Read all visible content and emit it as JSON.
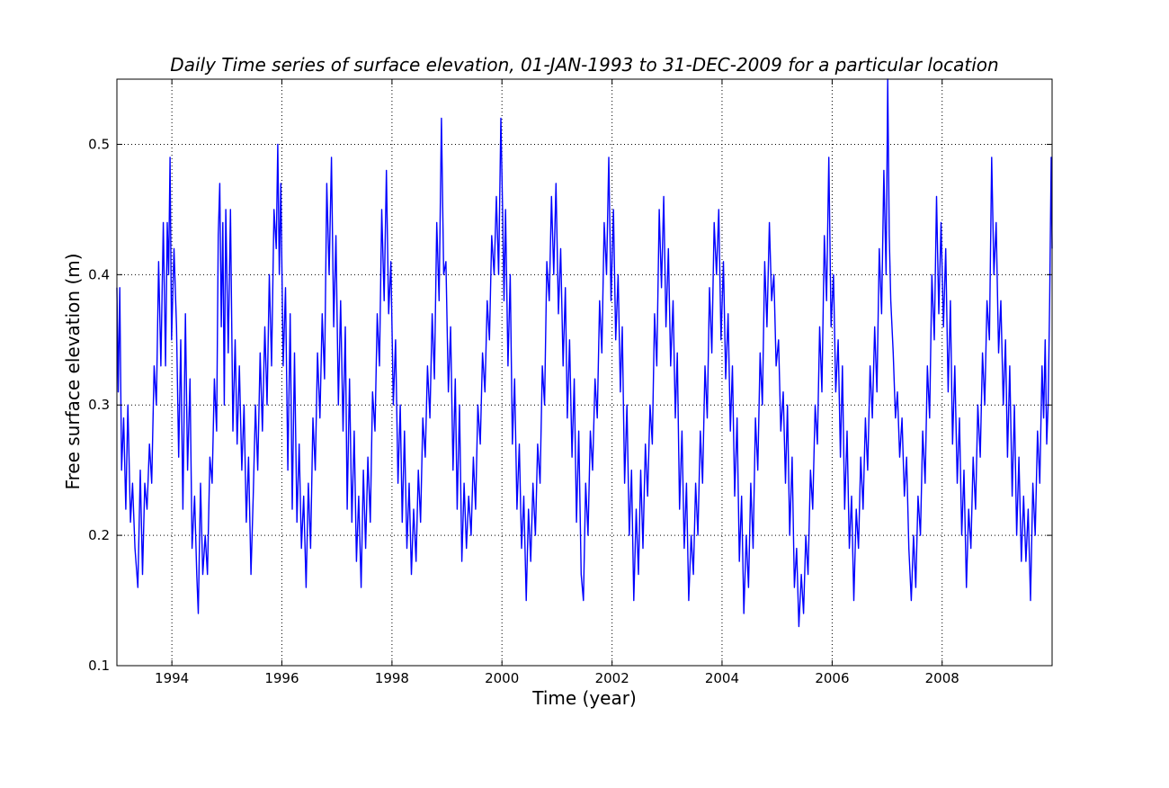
{
  "chart_data": {
    "type": "line",
    "title": "Daily Time series of surface elevation, 01-JAN-1993 to 31-DEC-2009 for a particular location",
    "xlabel": "Time (year)",
    "ylabel": "Free surface elevation (m)",
    "xlim": [
      "1993-01-01",
      "2009-12-31"
    ],
    "ylim": [
      0.1,
      0.55
    ],
    "x_ticks": [
      {
        "date": "1994-01-01",
        "label": "1994"
      },
      {
        "date": "1996-01-01",
        "label": "1996"
      },
      {
        "date": "1998-01-01",
        "label": "1998"
      },
      {
        "date": "2000-01-01",
        "label": "2000"
      },
      {
        "date": "2002-01-01",
        "label": "2002"
      },
      {
        "date": "2004-01-01",
        "label": "2004"
      },
      {
        "date": "2006-01-01",
        "label": "2006"
      },
      {
        "date": "2008-01-01",
        "label": "2008"
      }
    ],
    "y_ticks": [
      {
        "value": 0.1,
        "label": "0.1"
      },
      {
        "value": 0.2,
        "label": "0.2"
      },
      {
        "value": 0.3,
        "label": "0.3"
      },
      {
        "value": 0.4,
        "label": "0.4"
      },
      {
        "value": 0.5,
        "label": "0.5"
      }
    ],
    "grid": true,
    "grid_style": "dotted",
    "legend": "none",
    "series": [
      {
        "color": "#0000ff",
        "x": [
          "1993-01-01",
          "1993-01-10",
          "1993-01-20",
          "1993-02-01",
          "1993-02-15",
          "1993-03-01",
          "1993-03-15",
          "1993-04-01",
          "1993-04-15",
          "1993-05-01",
          "1993-05-20",
          "1993-06-05",
          "1993-06-20",
          "1993-07-05",
          "1993-07-20",
          "1993-08-05",
          "1993-08-20",
          "1993-09-05",
          "1993-09-20",
          "1993-10-05",
          "1993-10-20",
          "1993-11-05",
          "1993-11-20",
          "1993-12-01",
          "1993-12-10",
          "1993-12-20",
          "1993-12-30",
          "1994-01-15",
          "1994-02-01",
          "1994-02-15",
          "1994-03-01",
          "1994-03-15",
          "1994-04-01",
          "1994-04-15",
          "1994-05-01",
          "1994-05-15",
          "1994-06-01",
          "1994-06-15",
          "1994-06-25",
          "1994-07-10",
          "1994-07-25",
          "1994-08-10",
          "1994-08-25",
          "1994-09-10",
          "1994-09-25",
          "1994-10-10",
          "1994-10-25",
          "1994-11-05",
          "1994-11-15",
          "1994-11-25",
          "1994-12-05",
          "1994-12-15",
          "1994-12-25",
          "1995-01-10",
          "1995-01-25",
          "1995-02-10",
          "1995-02-25",
          "1995-03-10",
          "1995-03-25",
          "1995-04-10",
          "1995-04-25",
          "1995-05-10",
          "1995-05-25",
          "1995-06-10",
          "1995-06-25",
          "1995-07-10",
          "1995-07-25",
          "1995-08-10",
          "1995-08-25",
          "1995-09-10",
          "1995-09-25",
          "1995-10-10",
          "1995-10-25",
          "1995-11-10",
          "1995-11-25",
          "1995-12-05",
          "1995-12-15",
          "1995-12-25",
          "1996-01-10",
          "1996-01-25",
          "1996-02-10",
          "1996-02-25",
          "1996-03-10",
          "1996-03-25",
          "1996-04-10",
          "1996-04-25",
          "1996-05-10",
          "1996-05-25",
          "1996-06-10",
          "1996-06-25",
          "1996-07-10",
          "1996-07-25",
          "1996-08-10",
          "1996-08-25",
          "1996-09-10",
          "1996-09-25",
          "1996-10-10",
          "1996-10-25",
          "1996-11-10",
          "1996-11-25",
          "1996-12-10",
          "1996-12-25",
          "1997-01-10",
          "1997-01-25",
          "1997-02-10",
          "1997-02-25",
          "1997-03-10",
          "1997-03-25",
          "1997-04-10",
          "1997-04-25",
          "1997-05-10",
          "1997-05-25",
          "1997-06-10",
          "1997-06-25",
          "1997-07-10",
          "1997-07-25",
          "1997-08-10",
          "1997-08-25",
          "1997-09-10",
          "1997-09-25",
          "1997-10-10",
          "1997-10-25",
          "1997-11-10",
          "1997-11-25",
          "1997-12-10",
          "1997-12-25",
          "1998-01-10",
          "1998-01-25",
          "1998-02-10",
          "1998-02-25",
          "1998-03-10",
          "1998-03-25",
          "1998-04-10",
          "1998-04-25",
          "1998-05-10",
          "1998-05-25",
          "1998-06-10",
          "1998-06-25",
          "1998-07-10",
          "1998-07-25",
          "1998-08-10",
          "1998-08-25",
          "1998-09-10",
          "1998-09-25",
          "1998-10-10",
          "1998-10-25",
          "1998-11-10",
          "1998-11-25",
          "1998-12-10",
          "1998-12-25",
          "1999-01-10",
          "1999-01-25",
          "1999-02-10",
          "1999-02-25",
          "1999-03-10",
          "1999-03-25",
          "1999-04-10",
          "1999-04-25",
          "1999-05-10",
          "1999-05-25",
          "1999-06-10",
          "1999-06-25",
          "1999-07-10",
          "1999-07-25",
          "1999-08-10",
          "1999-08-25",
          "1999-09-10",
          "1999-09-25",
          "1999-10-10",
          "1999-10-25",
          "1999-11-10",
          "1999-11-25",
          "1999-12-10",
          "1999-12-25",
          "2000-01-05",
          "2000-01-15",
          "2000-01-25",
          "2000-02-10",
          "2000-02-25",
          "2000-03-10",
          "2000-03-25",
          "2000-04-10",
          "2000-04-25",
          "2000-05-10",
          "2000-05-25",
          "2000-06-10",
          "2000-06-25",
          "2000-07-10",
          "2000-07-25",
          "2000-08-10",
          "2000-08-25",
          "2000-09-10",
          "2000-09-25",
          "2000-10-10",
          "2000-10-25",
          "2000-11-10",
          "2000-11-25",
          "2000-12-10",
          "2000-12-25",
          "2001-01-10",
          "2001-01-25",
          "2001-02-10",
          "2001-02-25",
          "2001-03-10",
          "2001-03-25",
          "2001-04-10",
          "2001-04-25",
          "2001-05-10",
          "2001-05-25",
          "2001-06-10",
          "2001-06-25",
          "2001-07-10",
          "2001-07-25",
          "2001-08-10",
          "2001-08-25",
          "2001-09-10",
          "2001-09-25",
          "2001-10-10",
          "2001-10-25",
          "2001-11-10",
          "2001-11-25",
          "2001-12-10",
          "2001-12-25",
          "2002-01-10",
          "2002-01-25",
          "2002-02-10",
          "2002-02-25",
          "2002-03-10",
          "2002-03-25",
          "2002-04-10",
          "2002-04-25",
          "2002-05-10",
          "2002-05-25",
          "2002-06-10",
          "2002-06-25",
          "2002-07-10",
          "2002-07-25",
          "2002-08-10",
          "2002-08-25",
          "2002-09-10",
          "2002-09-25",
          "2002-10-10",
          "2002-10-25",
          "2002-11-10",
          "2002-11-25",
          "2002-12-10",
          "2002-12-25",
          "2003-01-10",
          "2003-01-25",
          "2003-02-10",
          "2003-02-25",
          "2003-03-10",
          "2003-03-25",
          "2003-04-10",
          "2003-04-25",
          "2003-05-10",
          "2003-05-25",
          "2003-06-10",
          "2003-06-25",
          "2003-07-10",
          "2003-07-25",
          "2003-08-10",
          "2003-08-25",
          "2003-09-10",
          "2003-09-25",
          "2003-10-10",
          "2003-10-25",
          "2003-11-10",
          "2003-11-25",
          "2003-12-10",
          "2003-12-25",
          "2004-01-10",
          "2004-01-25",
          "2004-02-10",
          "2004-02-25",
          "2004-03-10",
          "2004-03-25",
          "2004-04-10",
          "2004-04-25",
          "2004-05-10",
          "2004-05-25",
          "2004-06-10",
          "2004-06-25",
          "2004-07-10",
          "2004-07-25",
          "2004-08-10",
          "2004-08-25",
          "2004-09-10",
          "2004-09-25",
          "2004-10-10",
          "2004-10-25",
          "2004-11-10",
          "2004-11-25",
          "2004-12-10",
          "2004-12-25",
          "2005-01-10",
          "2005-01-25",
          "2005-02-10",
          "2005-02-25",
          "2005-03-10",
          "2005-03-25",
          "2005-04-10",
          "2005-04-25",
          "2005-05-10",
          "2005-05-25",
          "2005-06-10",
          "2005-06-25",
          "2005-07-10",
          "2005-07-25",
          "2005-08-10",
          "2005-08-25",
          "2005-09-10",
          "2005-09-25",
          "2005-10-10",
          "2005-10-25",
          "2005-11-10",
          "2005-11-25",
          "2005-12-10",
          "2005-12-25",
          "2006-01-10",
          "2006-01-25",
          "2006-02-10",
          "2006-02-25",
          "2006-03-10",
          "2006-03-25",
          "2006-04-10",
          "2006-04-25",
          "2006-05-10",
          "2006-05-25",
          "2006-06-10",
          "2006-06-25",
          "2006-07-10",
          "2006-07-25",
          "2006-08-10",
          "2006-08-25",
          "2006-09-10",
          "2006-09-25",
          "2006-10-10",
          "2006-10-25",
          "2006-11-10",
          "2006-11-25",
          "2006-12-10",
          "2006-12-25",
          "2007-01-05",
          "2007-01-15",
          "2007-01-25",
          "2007-02-10",
          "2007-02-25",
          "2007-03-10",
          "2007-03-25",
          "2007-04-10",
          "2007-04-25",
          "2007-05-10",
          "2007-05-25",
          "2007-06-10",
          "2007-06-25",
          "2007-07-10",
          "2007-07-25",
          "2007-08-10",
          "2007-08-25",
          "2007-09-10",
          "2007-09-25",
          "2007-10-10",
          "2007-10-25",
          "2007-11-10",
          "2007-11-25",
          "2007-12-10",
          "2007-12-25",
          "2008-01-10",
          "2008-01-25",
          "2008-02-10",
          "2008-02-25",
          "2008-03-10",
          "2008-03-25",
          "2008-04-10",
          "2008-04-25",
          "2008-05-10",
          "2008-05-25",
          "2008-06-10",
          "2008-06-25",
          "2008-07-10",
          "2008-07-25",
          "2008-08-10",
          "2008-08-25",
          "2008-09-10",
          "2008-09-25",
          "2008-10-10",
          "2008-10-25",
          "2008-11-10",
          "2008-11-25",
          "2008-12-10",
          "2008-12-25",
          "2009-01-10",
          "2009-01-25",
          "2009-02-10",
          "2009-02-25",
          "2009-03-10",
          "2009-03-25",
          "2009-04-10",
          "2009-04-25",
          "2009-05-10",
          "2009-05-25",
          "2009-06-10",
          "2009-06-25",
          "2009-07-10",
          "2009-07-25",
          "2009-08-10",
          "2009-08-25",
          "2009-09-10",
          "2009-09-25",
          "2009-10-10",
          "2009-10-25",
          "2009-11-05",
          "2009-11-15",
          "2009-11-25",
          "2009-12-05",
          "2009-12-15",
          "2009-12-25",
          "2009-12-31"
        ],
        "y": [
          0.39,
          0.31,
          0.39,
          0.25,
          0.29,
          0.22,
          0.3,
          0.21,
          0.24,
          0.19,
          0.16,
          0.25,
          0.17,
          0.24,
          0.22,
          0.27,
          0.24,
          0.33,
          0.3,
          0.41,
          0.33,
          0.44,
          0.33,
          0.44,
          0.4,
          0.49,
          0.35,
          0.42,
          0.36,
          0.26,
          0.35,
          0.22,
          0.37,
          0.25,
          0.32,
          0.19,
          0.23,
          0.17,
          0.14,
          0.24,
          0.17,
          0.2,
          0.17,
          0.26,
          0.24,
          0.32,
          0.28,
          0.43,
          0.47,
          0.36,
          0.44,
          0.3,
          0.45,
          0.34,
          0.45,
          0.28,
          0.35,
          0.27,
          0.33,
          0.25,
          0.3,
          0.21,
          0.26,
          0.17,
          0.23,
          0.3,
          0.25,
          0.34,
          0.28,
          0.36,
          0.3,
          0.4,
          0.33,
          0.45,
          0.42,
          0.5,
          0.4,
          0.47,
          0.33,
          0.39,
          0.25,
          0.37,
          0.22,
          0.34,
          0.21,
          0.27,
          0.19,
          0.23,
          0.16,
          0.24,
          0.19,
          0.29,
          0.25,
          0.34,
          0.29,
          0.37,
          0.32,
          0.47,
          0.4,
          0.49,
          0.36,
          0.43,
          0.3,
          0.38,
          0.28,
          0.36,
          0.22,
          0.32,
          0.21,
          0.28,
          0.18,
          0.23,
          0.16,
          0.25,
          0.19,
          0.26,
          0.21,
          0.31,
          0.28,
          0.37,
          0.33,
          0.45,
          0.38,
          0.48,
          0.37,
          0.41,
          0.3,
          0.35,
          0.24,
          0.3,
          0.21,
          0.28,
          0.19,
          0.24,
          0.17,
          0.22,
          0.18,
          0.25,
          0.21,
          0.29,
          0.26,
          0.33,
          0.29,
          0.37,
          0.32,
          0.44,
          0.38,
          0.52,
          0.4,
          0.41,
          0.31,
          0.36,
          0.25,
          0.32,
          0.22,
          0.3,
          0.18,
          0.24,
          0.19,
          0.23,
          0.2,
          0.26,
          0.22,
          0.3,
          0.27,
          0.34,
          0.31,
          0.38,
          0.35,
          0.43,
          0.4,
          0.46,
          0.4,
          0.52,
          0.45,
          0.38,
          0.45,
          0.33,
          0.4,
          0.27,
          0.32,
          0.22,
          0.27,
          0.19,
          0.23,
          0.15,
          0.22,
          0.18,
          0.24,
          0.2,
          0.27,
          0.24,
          0.33,
          0.3,
          0.41,
          0.38,
          0.46,
          0.4,
          0.47,
          0.37,
          0.42,
          0.33,
          0.39,
          0.29,
          0.35,
          0.26,
          0.32,
          0.21,
          0.28,
          0.17,
          0.15,
          0.24,
          0.2,
          0.28,
          0.25,
          0.32,
          0.29,
          0.38,
          0.34,
          0.44,
          0.4,
          0.49,
          0.38,
          0.45,
          0.35,
          0.4,
          0.31,
          0.36,
          0.24,
          0.3,
          0.2,
          0.25,
          0.15,
          0.22,
          0.17,
          0.25,
          0.19,
          0.27,
          0.23,
          0.3,
          0.27,
          0.37,
          0.33,
          0.45,
          0.39,
          0.46,
          0.36,
          0.42,
          0.33,
          0.38,
          0.29,
          0.34,
          0.22,
          0.28,
          0.19,
          0.24,
          0.15,
          0.2,
          0.17,
          0.24,
          0.2,
          0.28,
          0.24,
          0.33,
          0.29,
          0.39,
          0.34,
          0.44,
          0.4,
          0.45,
          0.35,
          0.41,
          0.32,
          0.37,
          0.28,
          0.33,
          0.23,
          0.29,
          0.18,
          0.23,
          0.14,
          0.2,
          0.16,
          0.24,
          0.19,
          0.29,
          0.25,
          0.34,
          0.3,
          0.41,
          0.36,
          0.44,
          0.38,
          0.4,
          0.33,
          0.35,
          0.28,
          0.31,
          0.24,
          0.3,
          0.2,
          0.26,
          0.16,
          0.19,
          0.13,
          0.17,
          0.14,
          0.2,
          0.17,
          0.25,
          0.22,
          0.3,
          0.27,
          0.36,
          0.31,
          0.43,
          0.38,
          0.49,
          0.36,
          0.4,
          0.31,
          0.35,
          0.26,
          0.33,
          0.22,
          0.28,
          0.19,
          0.23,
          0.15,
          0.22,
          0.19,
          0.26,
          0.22,
          0.29,
          0.25,
          0.33,
          0.29,
          0.36,
          0.31,
          0.42,
          0.37,
          0.48,
          0.4,
          0.55,
          0.43,
          0.38,
          0.34,
          0.29,
          0.31,
          0.26,
          0.29,
          0.23,
          0.26,
          0.19,
          0.15,
          0.2,
          0.16,
          0.23,
          0.2,
          0.28,
          0.24,
          0.33,
          0.29,
          0.4,
          0.35,
          0.46,
          0.37,
          0.44,
          0.36,
          0.42,
          0.31,
          0.38,
          0.27,
          0.33,
          0.24,
          0.29,
          0.2,
          0.25,
          0.16,
          0.22,
          0.19,
          0.26,
          0.22,
          0.3,
          0.26,
          0.34,
          0.3,
          0.38,
          0.35,
          0.49,
          0.4,
          0.44,
          0.34,
          0.38,
          0.3,
          0.35,
          0.26,
          0.33,
          0.23,
          0.3,
          0.2,
          0.26,
          0.18,
          0.23,
          0.18,
          0.22,
          0.15,
          0.24,
          0.2,
          0.28,
          0.24,
          0.33,
          0.29,
          0.35,
          0.27,
          0.3,
          0.38,
          0.49,
          0.42
        ]
      }
    ]
  }
}
